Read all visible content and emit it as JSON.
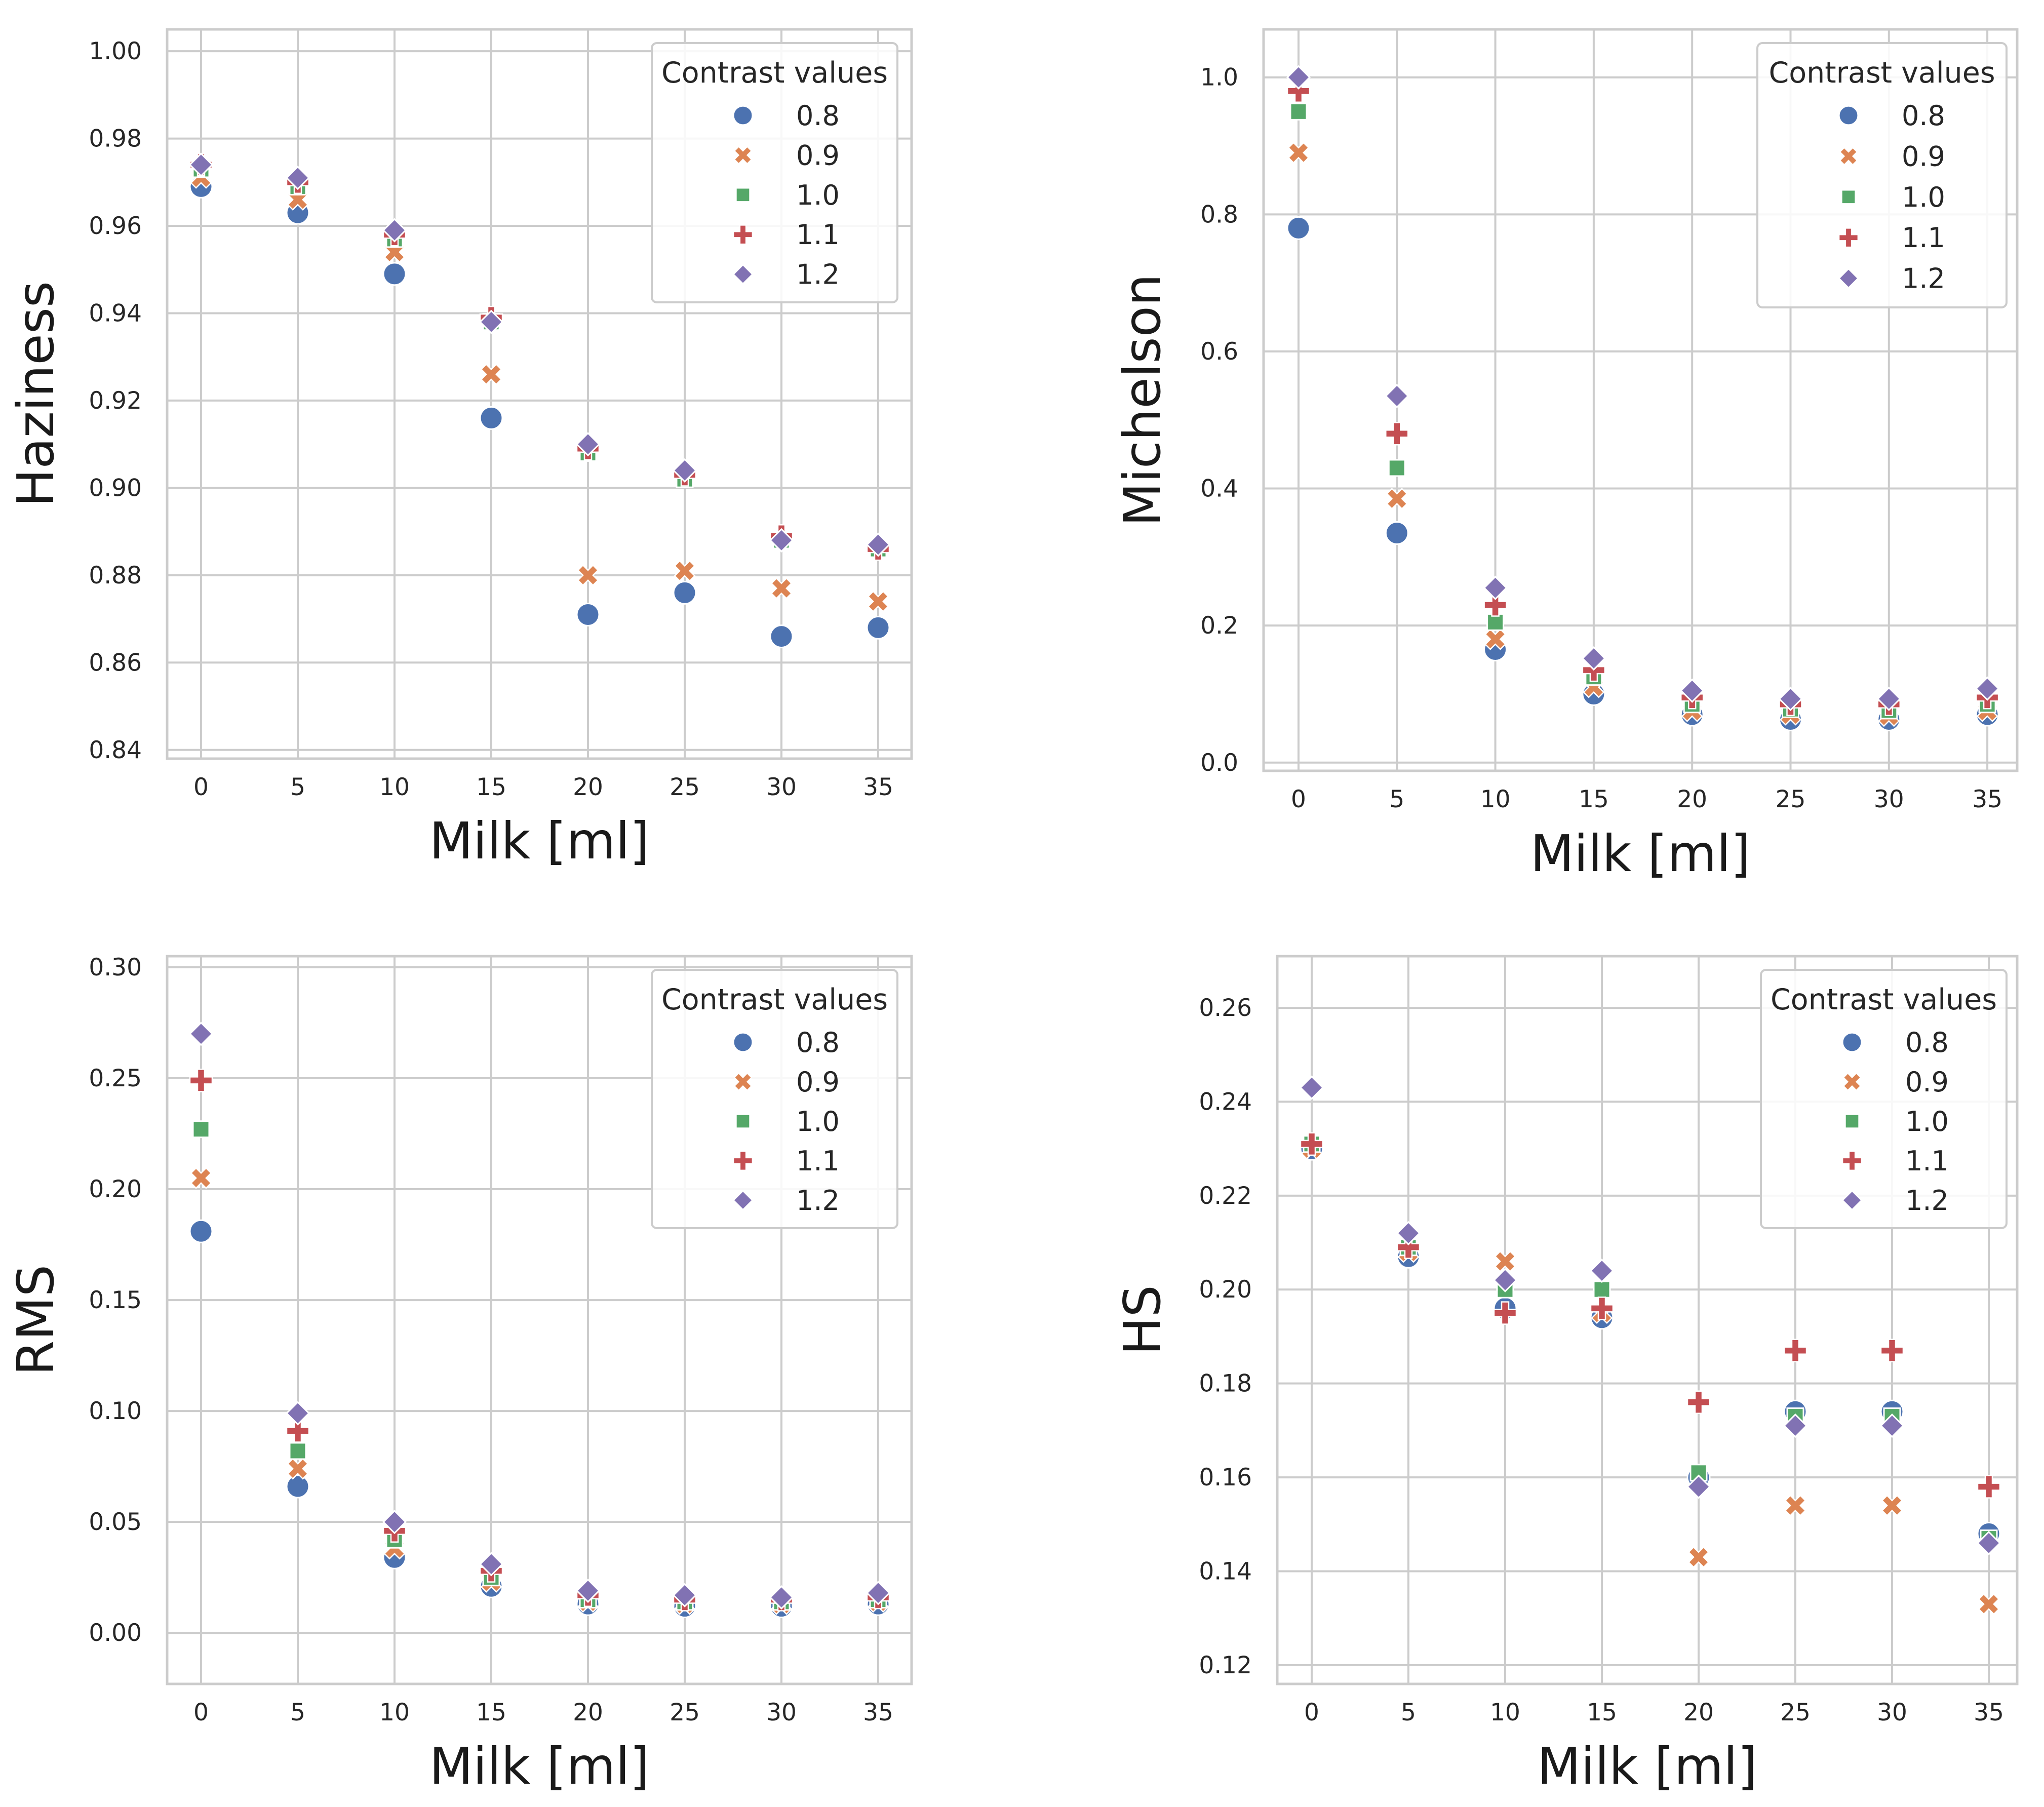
{
  "chart_data": [
    {
      "type": "scatter",
      "title": "",
      "xlabel": "Milk [ml]",
      "ylabel": "Haziness",
      "x": [
        0,
        5,
        10,
        15,
        20,
        25,
        30,
        35
      ],
      "xticks": [
        "0",
        "5",
        "10",
        "15",
        "20",
        "25",
        "30",
        "35"
      ],
      "ylim": [
        0.838,
        1.005
      ],
      "yticks": [
        "0.84",
        "0.86",
        "0.88",
        "0.90",
        "0.92",
        "0.94",
        "0.96",
        "0.98",
        "1.00"
      ],
      "ytick_values": [
        0.84,
        0.86,
        0.88,
        0.9,
        0.92,
        0.94,
        0.96,
        0.98,
        1.0
      ],
      "grid": true,
      "legend": {
        "title": "Contrast values",
        "position": "top-right"
      },
      "series": [
        {
          "name": "0.8",
          "values": [
            0.969,
            0.963,
            0.949,
            0.916,
            0.871,
            0.876,
            0.866,
            0.868
          ]
        },
        {
          "name": "0.9",
          "values": [
            0.971,
            0.966,
            0.954,
            0.926,
            0.88,
            0.881,
            0.877,
            0.874
          ]
        },
        {
          "name": "1.0",
          "values": [
            0.973,
            0.969,
            0.957,
            0.938,
            0.908,
            0.902,
            0.888,
            0.886
          ]
        },
        {
          "name": "1.1",
          "values": [
            0.974,
            0.97,
            0.958,
            0.939,
            0.909,
            0.903,
            0.889,
            0.886
          ]
        },
        {
          "name": "1.2",
          "values": [
            0.974,
            0.971,
            0.959,
            0.938,
            0.91,
            0.904,
            0.888,
            0.887
          ]
        }
      ]
    },
    {
      "type": "scatter",
      "title": "",
      "xlabel": "Milk [ml]",
      "ylabel": "Michelson",
      "x": [
        0,
        5,
        10,
        15,
        20,
        25,
        30,
        35
      ],
      "xticks": [
        "0",
        "5",
        "10",
        "15",
        "20",
        "25",
        "30",
        "35"
      ],
      "ylim": [
        -0.012,
        1.07
      ],
      "yticks": [
        "0.0",
        "0.2",
        "0.4",
        "0.6",
        "0.8",
        "1.0"
      ],
      "ytick_values": [
        0.0,
        0.2,
        0.4,
        0.6,
        0.8,
        1.0
      ],
      "grid": true,
      "legend": {
        "title": "Contrast values",
        "position": "top-right"
      },
      "series": [
        {
          "name": "0.8",
          "values": [
            0.78,
            0.335,
            0.165,
            0.1,
            0.07,
            0.063,
            0.063,
            0.07
          ]
        },
        {
          "name": "0.9",
          "values": [
            0.89,
            0.385,
            0.18,
            0.11,
            0.075,
            0.07,
            0.068,
            0.075
          ]
        },
        {
          "name": "1.0",
          "values": [
            0.95,
            0.43,
            0.205,
            0.125,
            0.085,
            0.078,
            0.076,
            0.085
          ]
        },
        {
          "name": "1.1",
          "values": [
            0.98,
            0.48,
            0.23,
            0.135,
            0.095,
            0.085,
            0.085,
            0.095
          ]
        },
        {
          "name": "1.2",
          "values": [
            1.0,
            0.535,
            0.255,
            0.152,
            0.105,
            0.093,
            0.093,
            0.108
          ]
        }
      ]
    },
    {
      "type": "scatter",
      "title": "",
      "xlabel": "Milk [ml]",
      "ylabel": "RMS",
      "x": [
        0,
        5,
        10,
        15,
        20,
        25,
        30,
        35
      ],
      "xticks": [
        "0",
        "5",
        "10",
        "15",
        "20",
        "25",
        "30",
        "35"
      ],
      "ylim": [
        -0.023,
        0.305
      ],
      "yticks": [
        "0.00",
        "0.05",
        "0.10",
        "0.15",
        "0.20",
        "0.25",
        "0.30"
      ],
      "ytick_values": [
        0.0,
        0.05,
        0.1,
        0.15,
        0.2,
        0.25,
        0.3
      ],
      "grid": true,
      "legend": {
        "title": "Contrast values",
        "position": "top-right"
      },
      "series": [
        {
          "name": "0.8",
          "values": [
            0.181,
            0.066,
            0.034,
            0.021,
            0.013,
            0.012,
            0.012,
            0.013
          ]
        },
        {
          "name": "0.9",
          "values": [
            0.205,
            0.074,
            0.038,
            0.023,
            0.014,
            0.013,
            0.013,
            0.014
          ]
        },
        {
          "name": "1.0",
          "values": [
            0.227,
            0.082,
            0.042,
            0.025,
            0.015,
            0.014,
            0.014,
            0.015
          ]
        },
        {
          "name": "1.1",
          "values": [
            0.249,
            0.091,
            0.046,
            0.028,
            0.017,
            0.015,
            0.015,
            0.016
          ]
        },
        {
          "name": "1.2",
          "values": [
            0.27,
            0.099,
            0.05,
            0.031,
            0.019,
            0.017,
            0.016,
            0.018
          ]
        }
      ]
    },
    {
      "type": "scatter",
      "title": "",
      "xlabel": "Milk [ml]",
      "ylabel": "HS",
      "x": [
        0,
        5,
        10,
        15,
        20,
        25,
        30,
        35
      ],
      "xticks": [
        "0",
        "5",
        "10",
        "15",
        "20",
        "25",
        "30",
        "35"
      ],
      "ylim": [
        0.116,
        0.271
      ],
      "yticks": [
        "0.12",
        "0.14",
        "0.16",
        "0.18",
        "0.20",
        "0.22",
        "0.24",
        "0.26"
      ],
      "ytick_values": [
        0.12,
        0.14,
        0.16,
        0.18,
        0.2,
        0.22,
        0.24,
        0.26
      ],
      "grid": true,
      "legend": {
        "title": "Contrast values",
        "position": "top-right"
      },
      "series": [
        {
          "name": "0.8",
          "values": [
            0.23,
            0.207,
            0.196,
            0.194,
            0.16,
            0.174,
            0.174,
            0.148
          ]
        },
        {
          "name": "0.9",
          "values": [
            0.23,
            0.208,
            0.206,
            0.195,
            0.143,
            0.154,
            0.154,
            0.133
          ]
        },
        {
          "name": "1.0",
          "values": [
            0.231,
            0.209,
            0.2,
            0.2,
            0.161,
            0.173,
            0.173,
            0.147
          ]
        },
        {
          "name": "1.1",
          "values": [
            0.231,
            0.209,
            0.195,
            0.196,
            0.176,
            0.187,
            0.187,
            0.158
          ]
        },
        {
          "name": "1.2",
          "values": [
            0.243,
            0.212,
            0.202,
            0.204,
            0.158,
            0.171,
            0.171,
            0.146
          ]
        }
      ]
    }
  ],
  "style": {
    "series_colors": [
      "#4c72b0",
      "#dd8452",
      "#55a868",
      "#c44e52",
      "#8172b3"
    ],
    "series_markers": [
      "circle",
      "x-mark",
      "square",
      "plus",
      "diamond"
    ],
    "grid_color": "#cccccc",
    "frame_color": "#cccccc"
  }
}
